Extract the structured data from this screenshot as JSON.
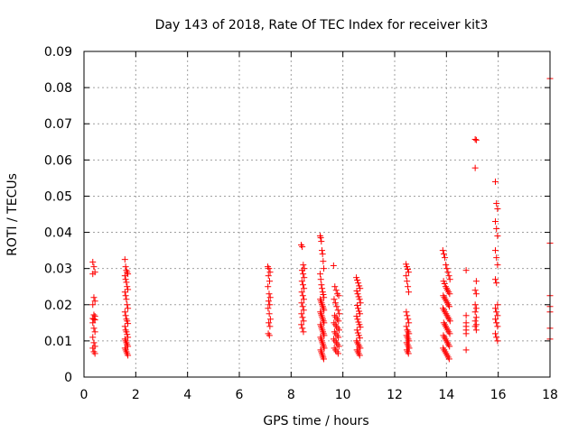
{
  "chart_data": {
    "type": "scatter",
    "title": "Day 143 of 2018, Rate Of TEC Index for receiver kit3",
    "xlabel": "GPS time / hours",
    "ylabel": "ROTI / TECUs",
    "xlim": [
      0,
      18
    ],
    "ylim": [
      0,
      0.09
    ],
    "xticks": [
      0,
      2,
      4,
      6,
      8,
      10,
      12,
      14,
      16,
      18
    ],
    "xtick_labels": [
      "0",
      "2",
      "4",
      "6",
      "8",
      "10",
      "12",
      "14",
      "16",
      "18"
    ],
    "yticks": [
      0,
      0.01,
      0.02,
      0.03,
      0.04,
      0.05,
      0.06,
      0.07,
      0.08,
      0.09
    ],
    "ytick_labels": [
      "0",
      "0.01",
      "0.02",
      "0.03",
      "0.04",
      "0.05",
      "0.06",
      "0.07",
      "0.08",
      "0.09"
    ],
    "grid": true,
    "marker": "+",
    "color": "#ff0000",
    "series": [
      {
        "name": "ROTI",
        "clusters": [
          {
            "x": 0.4,
            "x_spread": 0.12,
            "values": [
              0.0318,
              0.0305,
              0.029,
              0.0285,
              0.022,
              0.021,
              0.02,
              0.0172,
              0.0168,
              0.0162,
              0.016,
              0.0158,
              0.015,
              0.0135,
              0.0125,
              0.011,
              0.0095,
              0.0085,
              0.008,
              0.007,
              0.0065
            ]
          },
          {
            "x": 1.65,
            "x_spread": 0.14,
            "values": [
              0.0325,
              0.0305,
              0.0295,
              0.029,
              0.0285,
              0.028,
              0.027,
              0.0262,
              0.025,
              0.0242,
              0.0235,
              0.0225,
              0.0215,
              0.02,
              0.019,
              0.018,
              0.017,
              0.016,
              0.0155,
              0.0148,
              0.014,
              0.013,
              0.0125,
              0.0118,
              0.011,
              0.0105,
              0.01,
              0.0095,
              0.009,
              0.0085,
              0.008,
              0.0075,
              0.007,
              0.0065,
              0.006
            ]
          },
          {
            "x": 7.15,
            "x_spread": 0.1,
            "values": [
              0.0305,
              0.03,
              0.029,
              0.028,
              0.0265,
              0.025,
              0.023,
              0.022,
              0.021,
              0.02,
              0.019,
              0.0175,
              0.016,
              0.015,
              0.014,
              0.012,
              0.0115
            ]
          },
          {
            "x": 8.45,
            "x_spread": 0.12,
            "values": [
              0.0365,
              0.036,
              0.031,
              0.03,
              0.0295,
              0.0285,
              0.0275,
              0.0265,
              0.0255,
              0.0245,
              0.0235,
              0.0225,
              0.0215,
              0.0205,
              0.0195,
              0.0185,
              0.0175,
              0.0165,
              0.0155,
              0.0145,
              0.0135,
              0.0125
            ]
          },
          {
            "x": 9.2,
            "x_spread": 0.16,
            "values": [
              0.039,
              0.0385,
              0.0375,
              0.035,
              0.034,
              0.032,
              0.03,
              0.0285,
              0.027,
              0.0255,
              0.0245,
              0.0235,
              0.0228,
              0.022,
              0.0215,
              0.021,
              0.0205,
              0.02,
              0.0195,
              0.019,
              0.0185,
              0.018,
              0.0175,
              0.017,
              0.0165,
              0.016,
              0.0155,
              0.015,
              0.0145,
              0.014,
              0.0135,
              0.013,
              0.0125,
              0.012,
              0.0115,
              0.011,
              0.0105,
              0.01,
              0.0095,
              0.009,
              0.0085,
              0.008,
              0.0075,
              0.007,
              0.0065,
              0.006,
              0.0055,
              0.005
            ]
          },
          {
            "x": 9.75,
            "x_spread": 0.22,
            "values": [
              0.0308,
              0.025,
              0.024,
              0.023,
              0.0225,
              0.0215,
              0.0205,
              0.0195,
              0.0185,
              0.0175,
              0.017,
              0.0165,
              0.016,
              0.0155,
              0.015,
              0.0145,
              0.014,
              0.0135,
              0.013,
              0.0125,
              0.012,
              0.0115,
              0.011,
              0.0105,
              0.01,
              0.0095,
              0.009,
              0.0085,
              0.008,
              0.0075,
              0.007,
              0.0065
            ]
          },
          {
            "x": 10.6,
            "x_spread": 0.16,
            "values": [
              0.0275,
              0.0268,
              0.026,
              0.0252,
              0.0245,
              0.0238,
              0.023,
              0.0222,
              0.0215,
              0.0205,
              0.0198,
              0.019,
              0.0182,
              0.0175,
              0.0168,
              0.016,
              0.0152,
              0.0145,
              0.0138,
              0.013,
              0.0122,
              0.0115,
              0.0108,
              0.01,
              0.0095,
              0.009,
              0.0085,
              0.008,
              0.0075,
              0.007,
              0.0065,
              0.006
            ]
          },
          {
            "x": 12.5,
            "x_spread": 0.12,
            "values": [
              0.0312,
              0.0305,
              0.0298,
              0.029,
              0.028,
              0.0265,
              0.025,
              0.0235,
              0.018,
              0.017,
              0.016,
              0.015,
              0.014,
              0.013,
              0.0125,
              0.012,
              0.0115,
              0.011,
              0.0105,
              0.01,
              0.0095,
              0.009,
              0.0085,
              0.008,
              0.0075,
              0.007,
              0.0065
            ]
          },
          {
            "x": 14.0,
            "x_spread": 0.28,
            "values": [
              0.035,
              0.034,
              0.033,
              0.031,
              0.03,
              0.029,
              0.028,
              0.027,
              0.0265,
              0.0258,
              0.025,
              0.0245,
              0.024,
              0.0235,
              0.023,
              0.0225,
              0.022,
              0.0215,
              0.021,
              0.0205,
              0.02,
              0.0195,
              0.019,
              0.0185,
              0.018,
              0.0175,
              0.017,
              0.0165,
              0.016,
              0.0155,
              0.015,
              0.0145,
              0.014,
              0.0135,
              0.013,
              0.0125,
              0.012,
              0.0115,
              0.011,
              0.0105,
              0.01,
              0.0095,
              0.009,
              0.0085,
              0.008,
              0.0075,
              0.007,
              0.0065,
              0.006,
              0.0055,
              0.005
            ]
          },
          {
            "x": 14.8,
            "x_spread": 0.08,
            "values": [
              0.0295,
              0.017,
              0.015,
              0.014,
              0.013,
              0.012,
              0.0075
            ]
          },
          {
            "x": 15.15,
            "x_spread": 0.08,
            "values": [
              0.0657,
              0.0655,
              0.0578,
              0.0265,
              0.024,
              0.023,
              0.02,
              0.019,
              0.018,
              0.0165,
              0.0155,
              0.0145,
              0.014,
              0.013
            ]
          },
          {
            "x": 15.95,
            "x_spread": 0.12,
            "values": [
              0.054,
              0.048,
              0.0465,
              0.043,
              0.041,
              0.039,
              0.035,
              0.033,
              0.031,
              0.027,
              0.026,
              0.02,
              0.019,
              0.018,
              0.017,
              0.016,
              0.015,
              0.014,
              0.012,
              0.011,
              0.01
            ]
          },
          {
            "x": 18.0,
            "x_spread": 0.0,
            "values": [
              0.0825,
              0.037,
              0.0225,
              0.0195,
              0.018,
              0.0135,
              0.0105
            ]
          }
        ]
      }
    ]
  }
}
